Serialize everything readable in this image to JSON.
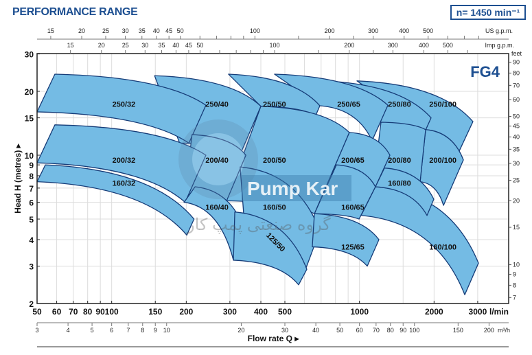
{
  "header": {
    "title": "PERFORMANCE RANGE",
    "speed": "n= 1450 min⁻¹"
  },
  "watermark": {
    "brand": "Pump Kar",
    "persian": "گروه صنعتی پمپ کار"
  },
  "chart_data": {
    "type": "area",
    "title": "FG4",
    "xlabel": "Flow rate Q ▸",
    "ylabel": "Head H (metres) ▸",
    "x_scale": "log",
    "y_scale": "log",
    "xlim": [
      50,
      4000
    ],
    "ylim": [
      2,
      30
    ],
    "x_unit": "l/min",
    "x_ticks": [
      50,
      60,
      70,
      80,
      90,
      100,
      150,
      200,
      300,
      400,
      500,
      1000,
      2000,
      3000
    ],
    "x_tick_labels": [
      "50",
      "60",
      "70",
      "80",
      "90",
      "100",
      "150",
      "200",
      "300",
      "400",
      "500",
      "1000",
      "2000",
      "3000"
    ],
    "y_ticks": [
      2,
      3,
      4,
      5,
      6,
      7,
      8,
      9,
      10,
      15,
      20,
      30
    ],
    "y_tick_labels": [
      "2",
      "3",
      "4",
      "5",
      "6",
      "7",
      "8",
      "9",
      "10",
      "15",
      "20",
      "30"
    ],
    "x_grid": [
      50,
      60,
      70,
      80,
      90,
      100,
      150,
      200,
      300,
      400,
      500,
      600,
      700,
      800,
      900,
      1000,
      1500,
      2000,
      3000
    ],
    "y_grid": [
      3,
      4,
      5,
      6,
      7,
      8,
      9,
      10,
      15,
      20
    ],
    "secondary_axes": {
      "us_gpm": {
        "unit": "US g.p.m.",
        "ticks": [
          15,
          20,
          25,
          30,
          35,
          40,
          45,
          50,
          100,
          200,
          300,
          400,
          500
        ],
        "minor": [
          60,
          70,
          80,
          90,
          150,
          250,
          600,
          700,
          800,
          900
        ]
      },
      "imp_gpm": {
        "unit": "Imp g.p.m.",
        "ticks": [
          15,
          20,
          25,
          30,
          35,
          40,
          45,
          50,
          100,
          200,
          300,
          400,
          500
        ],
        "minor": [
          60,
          70,
          80,
          90,
          150,
          250,
          600,
          700,
          800
        ]
      },
      "m3h": {
        "unit": "m³/h",
        "ticks": [
          3,
          4,
          5,
          6,
          7,
          8,
          9,
          10,
          20,
          30,
          40,
          50,
          60,
          70,
          80,
          90,
          100,
          150,
          200
        ],
        "minor": []
      },
      "feet": {
        "unit": "feet",
        "ticks": [
          7,
          8,
          9,
          10,
          15,
          20,
          25,
          30,
          35,
          40,
          45,
          50,
          60,
          70,
          80,
          90
        ]
      }
    },
    "series": [
      {
        "name": "250/100",
        "corners": [
          [
            977,
            22.4
          ],
          [
            2870,
            14.4
          ],
          [
            2511,
            10.3
          ],
          [
            1849,
            13.2
          ]
        ],
        "label_at": [
          2170,
          17.4
        ]
      },
      {
        "name": "250/80",
        "corners": [
          [
            710,
            22.4
          ],
          [
            1945,
            15.0
          ],
          [
            1780,
            11.9
          ],
          [
            1221,
            14.3
          ]
        ],
        "label_at": [
          1450,
          17.4
        ]
      },
      {
        "name": "250/65",
        "corners": [
          [
            454,
            24.1
          ],
          [
            1302,
            17.2
          ],
          [
            1124,
            11.7
          ],
          [
            692,
            17.1
          ]
        ],
        "label_at": [
          905,
          17.4
        ]
      },
      {
        "name": "250/50",
        "corners": [
          [
            296,
            24.1
          ],
          [
            692,
            17.1
          ],
          [
            666,
            15.4
          ],
          [
            400,
            17.0
          ]
        ],
        "label_at": [
          454,
          17.4
        ]
      },
      {
        "name": "250/40",
        "corners": [
          [
            149,
            23.7
          ],
          [
            400,
            17.0
          ],
          [
            335,
            10.5
          ],
          [
            188,
            11.4
          ]
        ],
        "label_at": [
          266,
          17.4
        ]
      },
      {
        "name": "250/32",
        "corners": [
          [
            59,
            24.1
          ],
          [
            240,
            17.2
          ],
          [
            205,
            11.4
          ],
          [
            50,
            16.0
          ]
        ],
        "label_at": [
          112,
          17.4
        ]
      },
      {
        "name": "200/100",
        "corners": [
          [
            1849,
            13.2
          ],
          [
            2626,
            9.5
          ],
          [
            2183,
            5.8
          ],
          [
            1757,
            7.5
          ]
        ],
        "label_at": [
          2170,
          9.5
        ]
      },
      {
        "name": "200/80",
        "corners": [
          [
            1221,
            14.3
          ],
          [
            1849,
            13.2
          ],
          [
            1757,
            7.5
          ],
          [
            1160,
            8.7
          ]
        ],
        "label_at": [
          1450,
          9.5
        ]
      },
      {
        "name": "200/65",
        "corners": [
          [
            910,
            12.8
          ],
          [
            1327,
            10.0
          ],
          [
            1160,
            7.1
          ],
          [
            658,
            5.3
          ]
        ],
        "label_at": [
          940,
          9.5
        ]
      },
      {
        "name": "200/50",
        "corners": [
          [
            400,
            17.0
          ],
          [
            910,
            12.8
          ],
          [
            658,
            5.3
          ],
          [
            291,
            6.1
          ]
        ],
        "label_at": [
          454,
          9.5
        ]
      },
      {
        "name": "200/40",
        "corners": [
          [
            211,
            12.5
          ],
          [
            348,
            10.0
          ],
          [
            291,
            6.1
          ],
          [
            196,
            6.0
          ]
        ],
        "label_at": [
          266,
          9.5
        ]
      },
      {
        "name": "200/32",
        "corners": [
          [
            59,
            13.9
          ],
          [
            240,
            10.0
          ],
          [
            198,
            6.0
          ],
          [
            50,
            9.2
          ]
        ],
        "label_at": [
          112,
          9.5
        ]
      },
      {
        "name": "160/100",
        "corners": [
          [
            1160,
            7.1
          ],
          [
            3021,
            3.1
          ],
          [
            2660,
            2.2
          ],
          [
            1015,
            5.2
          ]
        ],
        "label_at": [
          2170,
          3.7
        ]
      },
      {
        "name": "160/80",
        "corners": [
          [
            1261,
            8.7
          ],
          [
            1995,
            6.2
          ],
          [
            1873,
            5.2
          ],
          [
            1160,
            7.1
          ]
        ],
        "label_at": [
          1450,
          7.4
        ]
      },
      {
        "name": "160/65",
        "corners": [
          [
            807,
            9.0
          ],
          [
            1160,
            7.1
          ],
          [
            996,
            5.0
          ],
          [
            658,
            5.3
          ]
        ],
        "label_at": [
          940,
          5.7
        ]
      },
      {
        "name": "160/50",
        "corners": [
          [
            330,
            8.8
          ],
          [
            692,
            4.4
          ],
          [
            606,
            2.9
          ],
          [
            345,
            4.4
          ]
        ],
        "label_at": [
          454,
          5.7
        ]
      },
      {
        "name": "160/40",
        "corners": [
          [
            217,
            7.1
          ],
          [
            345,
            4.4
          ],
          [
            310,
            3.2
          ],
          [
            196,
            6.0
          ]
        ],
        "label_at": [
          266,
          5.7
        ]
      },
      {
        "name": "160/32",
        "corners": [
          [
            54,
            9.0
          ],
          [
            215,
            5.0
          ],
          [
            201,
            4.2
          ],
          [
            50,
            7.5
          ]
        ],
        "label_at": [
          112,
          7.4
        ]
      },
      {
        "name": "125/65",
        "corners": [
          [
            658,
            5.3
          ],
          [
            1198,
            4.0
          ],
          [
            1075,
            3.0
          ],
          [
            645,
            3.7
          ]
        ],
        "label_at": [
          940,
          3.7
        ]
      },
      {
        "name": "125/50",
        "corners": [
          [
            314,
            5.4
          ],
          [
            613,
            2.9
          ],
          [
            568,
            2.45
          ],
          [
            310,
            3.2
          ]
        ],
        "label_at": [
          460,
          3.9
        ],
        "label_rotated": true
      }
    ]
  },
  "colors": {
    "fill": "#74bbe4",
    "stroke": "#163c78",
    "brand": "#1d4f91",
    "grid": "#dcdcdc"
  }
}
